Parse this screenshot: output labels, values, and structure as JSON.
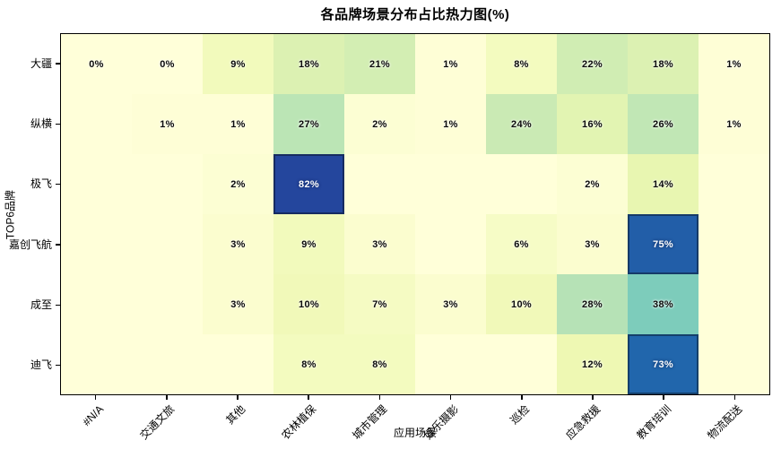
{
  "chart_data": {
    "type": "heatmap",
    "title": "各品牌场景分布占比热力图(%)",
    "xlabel": "应用场景",
    "ylabel": "TOP6品牌",
    "columns": [
      "#N/A",
      "交通文旅",
      "其他",
      "农林植保",
      "城市管理",
      "娱乐摄影",
      "巡检",
      "应急救援",
      "教育培训",
      "物流配送"
    ],
    "rows": [
      "大疆",
      "纵横",
      "极飞",
      "嘉创飞航",
      "成至",
      "迪飞"
    ],
    "values": [
      [
        0,
        0,
        9,
        18,
        21,
        1,
        8,
        22,
        18,
        1
      ],
      [
        null,
        1,
        1,
        27,
        2,
        1,
        24,
        16,
        26,
        1
      ],
      [
        null,
        null,
        2,
        82,
        null,
        null,
        null,
        2,
        14,
        null
      ],
      [
        null,
        null,
        3,
        9,
        3,
        null,
        6,
        3,
        75,
        null
      ],
      [
        null,
        null,
        3,
        10,
        7,
        3,
        10,
        28,
        38,
        null
      ],
      [
        null,
        null,
        null,
        8,
        8,
        null,
        null,
        12,
        73,
        null
      ]
    ],
    "unit": "%",
    "vmin": 0,
    "vmax": 100,
    "grid": "off",
    "legend": "none",
    "colormap": {
      "name": "YlGnBu",
      "stops": [
        {
          "t": 0.0,
          "color": "#ffffd9"
        },
        {
          "t": 0.125,
          "color": "#edf8b1"
        },
        {
          "t": 0.25,
          "color": "#c7e9b4"
        },
        {
          "t": 0.375,
          "color": "#7fcdbb"
        },
        {
          "t": 0.5,
          "color": "#41b6c4"
        },
        {
          "t": 0.625,
          "color": "#1d91c0"
        },
        {
          "t": 0.75,
          "color": "#225ea8"
        },
        {
          "t": 0.875,
          "color": "#253494"
        },
        {
          "t": 1.0,
          "color": "#081d58"
        }
      ]
    },
    "text_colors": {
      "on_light": "#0a0a0a",
      "on_dark": "#ffffff"
    },
    "axis_color": "#000000",
    "background": "#ffffff"
  }
}
